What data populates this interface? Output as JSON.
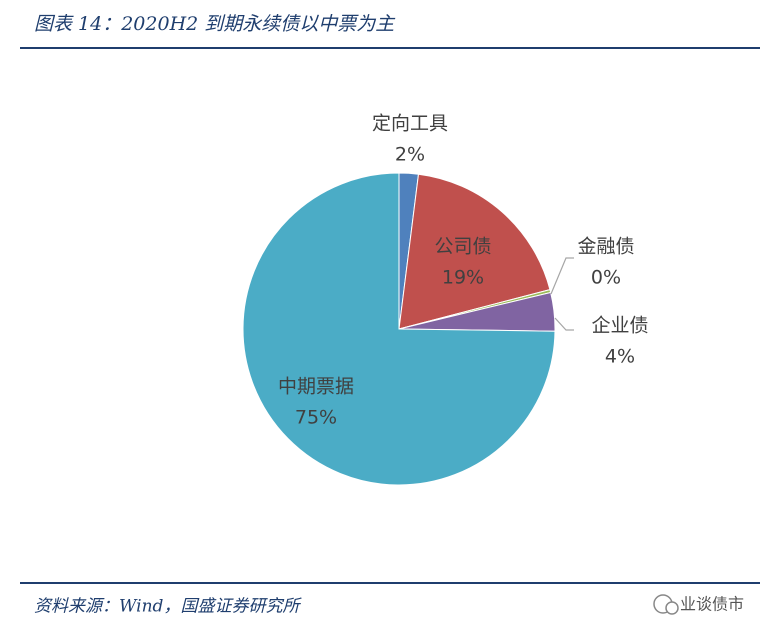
{
  "header": {
    "title": "图表 14：2020H2 到期永续债以中票为主"
  },
  "chart_data": {
    "type": "pie",
    "categories": [
      "定向工具",
      "公司债",
      "金融债",
      "企业债",
      "中期票据"
    ],
    "values": [
      2,
      19,
      0.3,
      4,
      75
    ],
    "value_labels": [
      "2%",
      "19%",
      "0%",
      "4%",
      "75%"
    ],
    "colors": [
      "#4f81bd",
      "#c0504d",
      "#9bbb59",
      "#8064a2",
      "#4bacc6"
    ]
  },
  "footer": {
    "source": "资料来源：Wind，国盛证券研究所",
    "watermark": "业谈债市"
  }
}
